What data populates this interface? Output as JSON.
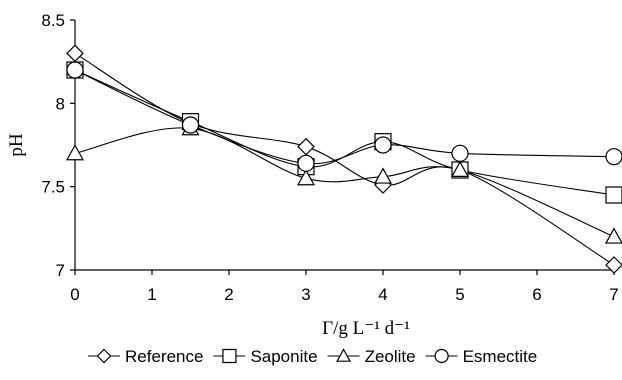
{
  "chart_data": {
    "type": "line",
    "x": [
      0,
      1.5,
      3,
      4,
      5,
      7
    ],
    "xlim": [
      0,
      7
    ],
    "ylim": [
      7,
      8.5
    ],
    "xticks": [
      "0",
      "1",
      "2",
      "3",
      "4",
      "5",
      "6",
      "7"
    ],
    "yticks": [
      "7",
      "7.5",
      "8",
      "8.5"
    ],
    "xlabel": "Γ/g L⁻¹ d⁻¹",
    "ylabel": "pH",
    "grid": false,
    "legend_position": "bottom",
    "series": [
      {
        "name": "Reference",
        "marker": "diamond",
        "values": [
          8.3,
          7.88,
          7.74,
          7.51,
          7.6,
          7.03
        ]
      },
      {
        "name": "Saponite",
        "marker": "square",
        "values": [
          8.2,
          7.89,
          7.62,
          7.77,
          7.6,
          7.45
        ]
      },
      {
        "name": "Zeolite",
        "marker": "triangle",
        "values": [
          7.7,
          7.85,
          7.55,
          7.56,
          7.6,
          7.2
        ]
      },
      {
        "name": "Esmectite",
        "marker": "circle",
        "values": [
          8.2,
          7.87,
          7.64,
          7.75,
          7.7,
          7.68
        ]
      }
    ],
    "line_color": "#000000"
  }
}
